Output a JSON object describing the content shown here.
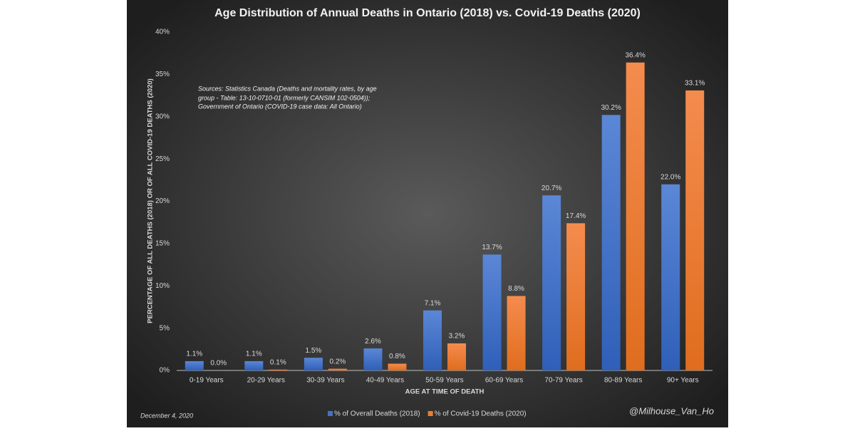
{
  "chart_data": {
    "type": "bar",
    "title": "Age Distribution of Annual Deaths in Ontario (2018) vs. Covid-19 Deaths (2020)",
    "y_label": "PERCENTAGE OF ALL DEATHS (2018) OR OF ALL COVID-19 DEATHS (2020)",
    "x_label": "AGE AT TIME OF DEATH",
    "source_note": [
      "Sources: Statistics Canada (Deaths and mortality rates, by age",
      "group - Table: 13-10-0710-01 (formerly CANSIM 102-0504));",
      "Government of Ontario (COVID-19 case data: All Ontario)"
    ],
    "date": "December 4, 2020",
    "credit": "@Milhouse_Van_Ho",
    "categories": [
      "0-19 Years",
      "20-29 Years",
      "30-39 Years",
      "40-49 Years",
      "50-59 Years",
      "60-69 Years",
      "70-79 Years",
      "80-89 Years",
      "90+ Years"
    ],
    "series": [
      {
        "name": "% of Overall Deaths (2018)",
        "color": "#4472c4",
        "values": [
          1.1,
          1.1,
          1.5,
          2.6,
          7.1,
          13.7,
          20.7,
          30.2,
          22.0
        ],
        "value_labels": [
          "1.1%",
          "1.1%",
          "1.5%",
          "2.6%",
          "7.1%",
          "13.7%",
          "20.7%",
          "30.2%",
          "22.0%"
        ]
      },
      {
        "name": "% of Covid-19 Deaths (2020)",
        "color": "#ed7d31",
        "values": [
          0.0,
          0.1,
          0.2,
          0.8,
          3.2,
          8.8,
          17.4,
          36.4,
          33.1
        ],
        "value_labels": [
          "0.0%",
          "0.1%",
          "0.2%",
          "0.8%",
          "3.2%",
          "8.8%",
          "17.4%",
          "36.4%",
          "33.1%"
        ]
      }
    ],
    "ylim": [
      0,
      40
    ],
    "yticks": [
      {
        "value": 0,
        "label": "0%"
      },
      {
        "value": 5,
        "label": "5%"
      },
      {
        "value": 10,
        "label": "10%"
      },
      {
        "value": 15,
        "label": "15%"
      },
      {
        "value": 20,
        "label": "20%"
      },
      {
        "value": 25,
        "label": "25%"
      },
      {
        "value": 30,
        "label": "30%"
      },
      {
        "value": 35,
        "label": "35%"
      },
      {
        "value": 40,
        "label": "40%"
      }
    ],
    "legend": "bottom"
  }
}
